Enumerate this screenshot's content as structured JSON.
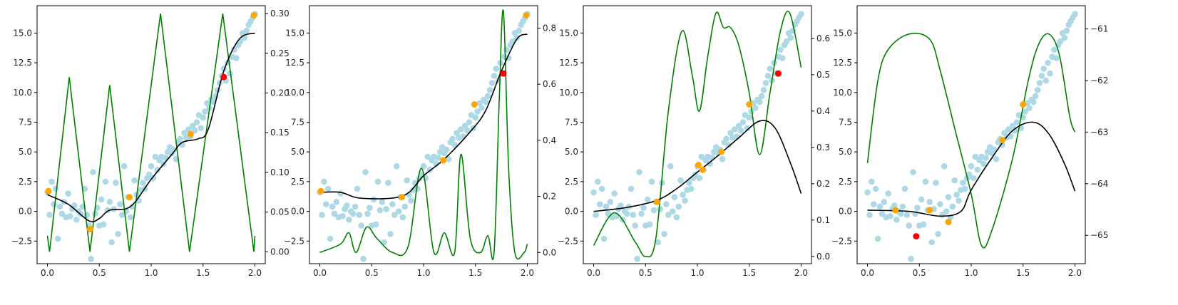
{
  "chart_data": [
    {
      "type": "scatter",
      "xlim": [
        -0.1,
        2.1
      ],
      "ylim": [
        -4.4,
        17.3
      ],
      "y2lim": [
        -0.015,
        0.31
      ],
      "xticks": [
        0,
        0.5,
        1,
        1.5,
        2
      ],
      "xtick_labels": [
        "0.0",
        "0.5",
        "1.0",
        "1.5",
        "2.0"
      ],
      "yticks": [
        -2.5,
        0,
        2.5,
        5,
        7.5,
        10,
        12.5,
        15
      ],
      "ytick_labels": [
        "−2.5",
        "0.0",
        "2.5",
        "5.0",
        "7.5",
        "10.0",
        "12.5",
        "15.0"
      ],
      "y2ticks": [
        0,
        0.05,
        0.1,
        0.15,
        0.2,
        0.25,
        0.3
      ],
      "y2tick_labels": [
        "0.00",
        "0.05",
        "0.10",
        "0.15",
        "0.20",
        "0.25",
        "0.30"
      ],
      "orange_points": [
        [
          0.01,
          1.7
        ],
        [
          0.41,
          -1.5
        ],
        [
          0.79,
          1.2
        ],
        [
          1.38,
          6.5
        ],
        [
          1.99,
          16.5
        ]
      ],
      "red_points": [
        [
          1.7,
          11.3
        ]
      ],
      "mean_line": [
        [
          0,
          1.4
        ],
        [
          0.2,
          0.6
        ],
        [
          0.4,
          -0.8
        ],
        [
          0.5,
          -0.6
        ],
        [
          0.6,
          0.1
        ],
        [
          0.8,
          0.4
        ],
        [
          1.0,
          2.7
        ],
        [
          1.2,
          4.8
        ],
        [
          1.3,
          5.8
        ],
        [
          1.45,
          6.1
        ],
        [
          1.55,
          6.9
        ],
        [
          1.7,
          11.8
        ],
        [
          1.85,
          14.5
        ],
        [
          2.0,
          15
        ]
      ],
      "acquisition_line": [
        [
          0,
          0.02
        ],
        [
          0.02,
          0.0
        ],
        [
          0.21,
          0.22
        ],
        [
          0.41,
          0.0
        ],
        [
          0.6,
          0.21
        ],
        [
          0.79,
          0.0
        ],
        [
          1.09,
          0.3
        ],
        [
          1.37,
          0.0
        ],
        [
          1.69,
          0.3
        ],
        [
          1.99,
          0.0
        ],
        [
          2.0,
          0.02
        ]
      ]
    },
    {
      "type": "scatter",
      "xlim": [
        -0.1,
        2.1
      ],
      "ylim": [
        -4.4,
        17.3
      ],
      "y2lim": [
        -0.04,
        0.88
      ],
      "xticks": [
        0,
        0.5,
        1,
        1.5,
        2
      ],
      "xtick_labels": [
        "0.0",
        "0.5",
        "1.0",
        "1.5",
        "2.0"
      ],
      "yticks": [
        -2.5,
        0,
        2.5,
        5,
        7.5,
        10,
        12.5,
        15
      ],
      "ytick_labels": [
        "−2.5",
        "0.0",
        "2.5",
        "5.0",
        "7.5",
        "10.0",
        "12.5",
        "15.0"
      ],
      "y2ticks": [
        0,
        0.2,
        0.4,
        0.6,
        0.8
      ],
      "y2tick_labels": [
        "0.0",
        "0.2",
        "0.4",
        "0.6",
        "0.8"
      ],
      "orange_points": [
        [
          0.01,
          1.7
        ],
        [
          0.79,
          1.2
        ],
        [
          1.19,
          4.3
        ],
        [
          1.49,
          9.0
        ],
        [
          1.99,
          16.5
        ]
      ],
      "red_points": [
        [
          1.77,
          11.6
        ]
      ],
      "mean_line": [
        [
          0,
          1.6
        ],
        [
          0.2,
          1.6
        ],
        [
          0.4,
          1.1
        ],
        [
          0.8,
          1.3
        ],
        [
          1.0,
          3.0
        ],
        [
          1.2,
          4.4
        ],
        [
          1.45,
          6.7
        ],
        [
          1.6,
          8.5
        ],
        [
          1.75,
          11.8
        ],
        [
          1.9,
          14.5
        ],
        [
          2.0,
          14.9
        ]
      ],
      "acquisition_line": [
        [
          0,
          0.0
        ],
        [
          0.2,
          0.03
        ],
        [
          0.28,
          0.07
        ],
        [
          0.35,
          0.0
        ],
        [
          0.45,
          0.09
        ],
        [
          0.55,
          0.05
        ],
        [
          0.7,
          0.0
        ],
        [
          0.85,
          0.02
        ],
        [
          0.98,
          0.3
        ],
        [
          1.1,
          0.0
        ],
        [
          1.2,
          0.07
        ],
        [
          1.3,
          0.0
        ],
        [
          1.36,
          0.35
        ],
        [
          1.45,
          0.05
        ],
        [
          1.55,
          0.0
        ],
        [
          1.62,
          0.06
        ],
        [
          1.68,
          0.0
        ],
        [
          1.73,
          0.55
        ],
        [
          1.77,
          0.86
        ],
        [
          1.82,
          0.3
        ],
        [
          1.88,
          0.0
        ],
        [
          1.97,
          0.0
        ],
        [
          2.0,
          0.03
        ]
      ]
    },
    {
      "type": "scatter",
      "xlim": [
        -0.1,
        2.1
      ],
      "ylim": [
        -4.4,
        17.3
      ],
      "y2lim": [
        -0.02,
        0.69
      ],
      "xticks": [
        0,
        0.5,
        1,
        1.5,
        2
      ],
      "xtick_labels": [
        "0.0",
        "0.5",
        "1.0",
        "1.5",
        "2.0"
      ],
      "yticks": [
        -2.5,
        0,
        2.5,
        5,
        7.5,
        10,
        12.5,
        15
      ],
      "ytick_labels": [
        "−2.5",
        "0.0",
        "2.5",
        "5.0",
        "7.5",
        "10.0",
        "12.5",
        "15.0"
      ],
      "y2ticks": [
        0,
        0.1,
        0.2,
        0.3,
        0.4,
        0.5,
        0.6
      ],
      "y2tick_labels": [
        "0.0",
        "0.1",
        "0.2",
        "0.3",
        "0.4",
        "0.5",
        "0.6"
      ],
      "orange_points": [
        [
          0.61,
          0.8
        ],
        [
          1.01,
          3.9
        ],
        [
          1.05,
          3.5
        ],
        [
          1.23,
          5.0
        ],
        [
          1.5,
          9.0
        ]
      ],
      "red_points": [
        [
          1.78,
          11.6
        ]
      ],
      "mean_line": [
        [
          0,
          0.0
        ],
        [
          0.3,
          0.3
        ],
        [
          0.6,
          0.9
        ],
        [
          0.8,
          1.9
        ],
        [
          1.0,
          3.3
        ],
        [
          1.2,
          4.7
        ],
        [
          1.4,
          6.2
        ],
        [
          1.6,
          7.6
        ],
        [
          1.75,
          7.0
        ],
        [
          1.9,
          4.0
        ],
        [
          2.0,
          1.5
        ]
      ],
      "acquisition_line": [
        [
          0,
          0.03
        ],
        [
          0.2,
          0.12
        ],
        [
          0.4,
          0.04
        ],
        [
          0.5,
          0.0
        ],
        [
          0.6,
          0.05
        ],
        [
          0.72,
          0.4
        ],
        [
          0.85,
          0.62
        ],
        [
          0.95,
          0.5
        ],
        [
          1.02,
          0.4
        ],
        [
          1.1,
          0.55
        ],
        [
          1.18,
          0.67
        ],
        [
          1.25,
          0.63
        ],
        [
          1.32,
          0.63
        ],
        [
          1.4,
          0.58
        ],
        [
          1.5,
          0.45
        ],
        [
          1.6,
          0.28
        ],
        [
          1.7,
          0.45
        ],
        [
          1.8,
          0.62
        ],
        [
          1.89,
          0.67
        ],
        [
          2.0,
          0.52
        ]
      ]
    },
    {
      "type": "scatter",
      "xlim": [
        -0.1,
        2.1
      ],
      "ylim": [
        -4.4,
        17.3
      ],
      "y2lim": [
        -65.55,
        -60.55
      ],
      "xticks": [
        0,
        0.5,
        1,
        1.5,
        2
      ],
      "xtick_labels": [
        "0.0",
        "0.5",
        "1.0",
        "1.5",
        "2.0"
      ],
      "yticks": [
        -2.5,
        0,
        2.5,
        5,
        7.5,
        10,
        12.5,
        15
      ],
      "ytick_labels": [
        "−2.5",
        "0.0",
        "2.5",
        "5.0",
        "7.5",
        "10.0",
        "12.5",
        "15.0"
      ],
      "y2ticks": [
        -65,
        -64,
        -63,
        -62,
        -61
      ],
      "y2tick_labels": [
        "−65",
        "−64",
        "−63",
        "−62",
        "−61"
      ],
      "orange_points": [
        [
          0.27,
          0.1
        ],
        [
          0.6,
          0.1
        ],
        [
          0.78,
          -0.9
        ],
        [
          1.3,
          6.0
        ],
        [
          1.5,
          9.0
        ]
      ],
      "red_points": [
        [
          0.47,
          -2.1
        ]
      ],
      "mean_line": [
        [
          0,
          0.1
        ],
        [
          0.4,
          0.0
        ],
        [
          0.7,
          -0.4
        ],
        [
          0.9,
          0.0
        ],
        [
          1.0,
          1.8
        ],
        [
          1.2,
          4.5
        ],
        [
          1.4,
          6.8
        ],
        [
          1.6,
          7.5
        ],
        [
          1.75,
          6.5
        ],
        [
          1.9,
          4.0
        ],
        [
          2.0,
          1.7
        ]
      ],
      "acquisition_line": [
        [
          0,
          -63.6
        ],
        [
          0.1,
          -62.0
        ],
        [
          0.2,
          -61.4
        ],
        [
          0.4,
          -61.1
        ],
        [
          0.6,
          -61.2
        ],
        [
          0.7,
          -61.8
        ],
        [
          0.85,
          -63.0
        ],
        [
          1.0,
          -64.2
        ],
        [
          1.1,
          -65.2
        ],
        [
          1.2,
          -64.9
        ],
        [
          1.4,
          -63.5
        ],
        [
          1.55,
          -62.0
        ],
        [
          1.65,
          -61.3
        ],
        [
          1.75,
          -61.1
        ],
        [
          1.85,
          -61.5
        ],
        [
          1.95,
          -62.7
        ],
        [
          2.0,
          -63.0
        ]
      ]
    }
  ],
  "observations": {
    "x": [
      0.0,
      0.02,
      0.04,
      0.06,
      0.08,
      0.1,
      0.12,
      0.14,
      0.16,
      0.18,
      0.2,
      0.22,
      0.24,
      0.26,
      0.28,
      0.3,
      0.32,
      0.34,
      0.36,
      0.38,
      0.4,
      0.42,
      0.44,
      0.46,
      0.48,
      0.5,
      0.52,
      0.54,
      0.56,
      0.58,
      0.6,
      0.62,
      0.64,
      0.66,
      0.68,
      0.7,
      0.72,
      0.74,
      0.76,
      0.78,
      0.8,
      0.82,
      0.84,
      0.86,
      0.88,
      0.9,
      0.92,
      0.94,
      0.96,
      0.98,
      1.0,
      1.02,
      1.04,
      1.06,
      1.08,
      1.1,
      1.12,
      1.14,
      1.16,
      1.18,
      1.2,
      1.22,
      1.24,
      1.26,
      1.28,
      1.3,
      1.32,
      1.34,
      1.36,
      1.38,
      1.4,
      1.42,
      1.44,
      1.46,
      1.48,
      1.5,
      1.52,
      1.54,
      1.56,
      1.58,
      1.6,
      1.62,
      1.64,
      1.66,
      1.68,
      1.7,
      1.72,
      1.74,
      1.76,
      1.78,
      1.8,
      1.82,
      1.84,
      1.86,
      1.88,
      1.9,
      1.92,
      1.94,
      1.96,
      1.98,
      2.0
    ],
    "y": [
      1.6,
      -0.3,
      2.5,
      0.6,
      1.9,
      -2.3,
      0.4,
      -0.2,
      0.8,
      -0.5,
      1.5,
      -0.4,
      0.2,
      0.5,
      -0.7,
      0.0,
      -0.2,
      0.4,
      1.9,
      -0.3,
      -1.2,
      -4.0,
      3.3,
      -0.2,
      0.3,
      -1.2,
      1.0,
      -1.1,
      2.5,
      0.1,
      0.8,
      -2.6,
      0.2,
      2.4,
      -1.9,
      0.6,
      -0.3,
      3.8,
      0.0,
      1.2,
      -0.5,
      0.4,
      2.6,
      1.4,
      0.9,
      1.8,
      2.4,
      1.9,
      2.8,
      3.1,
      3.8,
      2.8,
      4.6,
      3.5,
      4.3,
      4.6,
      4.0,
      4.5,
      5.0,
      5.4,
      4.9,
      5.2,
      4.4,
      5.8,
      6.1,
      5.6,
      6.6,
      6.2,
      6.9,
      6.3,
      7.2,
      6.8,
      7.5,
      8.1,
      7.0,
      7.9,
      8.4,
      9.1,
      8.7,
      9.4,
      9.2,
      9.7,
      10.2,
      10.8,
      11.4,
      12.0,
      11.0,
      12.5,
      11.6,
      13.0,
      13.6,
      12.9,
      14.0,
      14.3,
      15.0,
      14.6,
      15.2,
      15.7,
      16.0,
      16.3,
      16.6
    ]
  },
  "colors": {
    "observations": "#add8e6",
    "orange_points": "#ffa500",
    "red_points": "#ff0000",
    "mean_line": "#000000",
    "acquisition_line": "#008000",
    "axes": "#000000"
  }
}
